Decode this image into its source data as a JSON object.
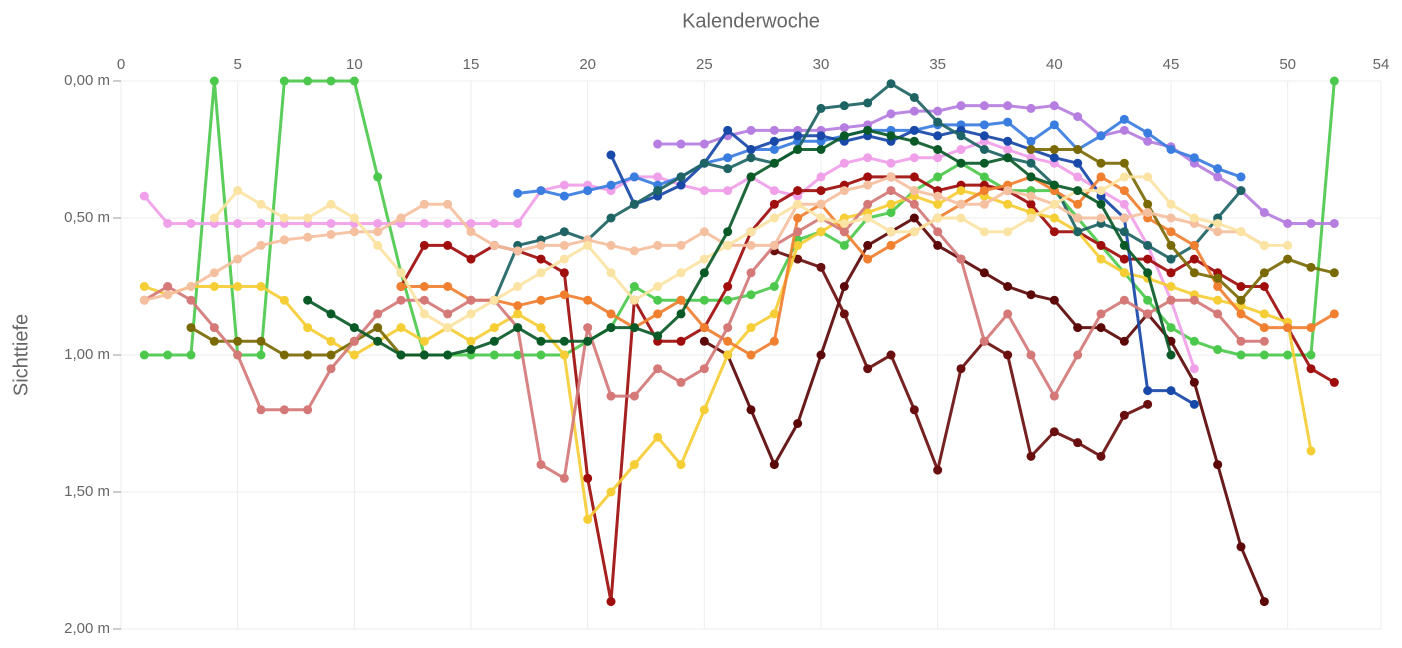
{
  "chart_data": {
    "type": "line",
    "x_label": "Kalenderwoche",
    "y_label": "Sichttiefe",
    "x": [
      1,
      2,
      3,
      4,
      5,
      6,
      7,
      8,
      9,
      10,
      11,
      12,
      13,
      14,
      15,
      16,
      17,
      18,
      19,
      20,
      21,
      22,
      23,
      24,
      25,
      26,
      27,
      28,
      29,
      30,
      31,
      32,
      33,
      34,
      35,
      36,
      37,
      38,
      39,
      40,
      41,
      42,
      43,
      44,
      45,
      46,
      47,
      48,
      49,
      50,
      51,
      52,
      53
    ],
    "xlim": [
      0,
      54
    ],
    "xticks": [
      0,
      5,
      10,
      15,
      20,
      25,
      30,
      35,
      40,
      45,
      50,
      54
    ],
    "ylim": [
      0,
      2
    ],
    "y_inverted": true,
    "x_axis_position": "top",
    "grid": true,
    "yticks": [
      {
        "value": 0,
        "label": "0,00 m"
      },
      {
        "value": 0.5,
        "label": "0,50 m"
      },
      {
        "value": 1,
        "label": "1,00 m"
      },
      {
        "value": 1.5,
        "label": "1,50 m"
      },
      {
        "value": 2,
        "label": "2,00 m"
      }
    ],
    "series": [
      {
        "color": "#4cc94c",
        "values": [
          1,
          1,
          1,
          0,
          1,
          1,
          0,
          0,
          0,
          0,
          0.35,
          0.7,
          1,
          1,
          1,
          1,
          1,
          1,
          1,
          0.95,
          0.9,
          0.75,
          0.8,
          0.8,
          0.8,
          0.8,
          0.78,
          0.75,
          0.58,
          0.55,
          0.6,
          0.5,
          0.48,
          0.4,
          0.35,
          0.3,
          0.35,
          0.4,
          0.4,
          0.4,
          0.5,
          0.6,
          0.7,
          0.8,
          0.9,
          0.95,
          0.98,
          1,
          1,
          1,
          1,
          0,
          null
        ]
      },
      {
        "color": "#f0a0e8",
        "values": [
          0.42,
          0.52,
          0.52,
          0.52,
          0.52,
          0.52,
          0.52,
          0.52,
          0.52,
          0.52,
          0.52,
          0.52,
          0.52,
          0.52,
          0.52,
          0.52,
          0.52,
          0.4,
          0.38,
          0.38,
          0.4,
          0.35,
          0.35,
          0.38,
          0.4,
          0.4,
          0.35,
          0.4,
          0.42,
          0.35,
          0.3,
          0.28,
          0.3,
          0.28,
          0.28,
          0.25,
          0.22,
          0.25,
          0.28,
          0.3,
          0.35,
          0.4,
          0.45,
          0.6,
          0.8,
          1.05,
          null,
          null,
          null,
          null,
          null,
          null,
          null
        ]
      },
      {
        "color": "#b57ee0",
        "values": [
          null,
          null,
          null,
          null,
          null,
          null,
          null,
          null,
          null,
          null,
          null,
          null,
          null,
          null,
          null,
          null,
          null,
          null,
          null,
          null,
          null,
          null,
          0.23,
          0.23,
          0.23,
          0.2,
          0.18,
          0.18,
          0.18,
          0.18,
          0.17,
          0.16,
          0.12,
          0.11,
          0.11,
          0.09,
          0.09,
          0.09,
          0.1,
          0.09,
          0.13,
          0.2,
          0.18,
          0.22,
          0.24,
          0.3,
          0.35,
          0.4,
          0.48,
          0.52,
          0.52,
          0.52,
          null
        ]
      },
      {
        "color": "#5c0808",
        "values": [
          null,
          null,
          null,
          null,
          null,
          null,
          null,
          null,
          null,
          null,
          null,
          null,
          null,
          null,
          null,
          null,
          null,
          null,
          null,
          null,
          null,
          null,
          null,
          null,
          0.95,
          1.0,
          1.2,
          1.4,
          1.25,
          1.0,
          0.75,
          0.6,
          0.55,
          0.5,
          0.6,
          0.65,
          0.7,
          0.75,
          0.78,
          0.8,
          0.9,
          0.9,
          0.95,
          0.85,
          0.95,
          1.1,
          1.4,
          1.7,
          1.9,
          null,
          null,
          null,
          null
        ]
      },
      {
        "color": "#6a0f0f",
        "values": [
          null,
          null,
          null,
          null,
          null,
          null,
          null,
          null,
          null,
          null,
          null,
          null,
          null,
          null,
          null,
          null,
          null,
          null,
          null,
          null,
          null,
          null,
          null,
          null,
          null,
          null,
          null,
          0.62,
          0.65,
          0.68,
          0.85,
          1.05,
          1.0,
          1.2,
          1.42,
          1.05,
          0.95,
          1.0,
          1.37,
          1.28,
          1.32,
          1.37,
          1.22,
          1.18,
          null,
          null,
          null,
          null,
          null,
          null,
          null,
          null,
          null
        ]
      },
      {
        "color": "#a00d0d",
        "values": [
          null,
          null,
          null,
          null,
          null,
          null,
          null,
          null,
          null,
          null,
          null,
          0.75,
          0.6,
          0.6,
          0.65,
          0.6,
          0.62,
          0.65,
          0.7,
          1.45,
          1.9,
          0.8,
          0.95,
          0.95,
          0.9,
          0.75,
          0.55,
          0.45,
          0.4,
          0.4,
          0.38,
          0.35,
          0.35,
          0.35,
          0.4,
          0.38,
          0.38,
          0.4,
          0.45,
          0.55,
          0.55,
          0.6,
          0.65,
          0.65,
          0.7,
          0.65,
          0.7,
          0.75,
          0.75,
          0.9,
          1.05,
          1.1,
          null
        ]
      },
      {
        "color": "#f5cd35",
        "values": [
          0.75,
          0.78,
          0.75,
          0.75,
          0.75,
          0.75,
          0.8,
          0.9,
          0.95,
          1.0,
          0.95,
          0.9,
          0.95,
          0.9,
          0.95,
          0.9,
          0.85,
          0.9,
          1.0,
          1.6,
          1.5,
          1.4,
          1.3,
          1.4,
          1.2,
          1.0,
          0.9,
          0.85,
          0.6,
          0.55,
          0.5,
          0.48,
          0.45,
          0.42,
          0.45,
          0.4,
          0.42,
          0.45,
          0.48,
          0.5,
          0.55,
          0.65,
          0.7,
          0.72,
          0.75,
          0.78,
          0.8,
          0.82,
          0.85,
          0.88,
          1.35,
          null,
          null
        ]
      },
      {
        "color": "#3a7de0",
        "values": [
          null,
          null,
          null,
          null,
          null,
          null,
          null,
          null,
          null,
          null,
          null,
          null,
          null,
          null,
          null,
          null,
          0.41,
          0.4,
          0.42,
          0.4,
          0.38,
          0.35,
          0.38,
          0.35,
          0.3,
          0.28,
          0.25,
          0.25,
          0.22,
          0.22,
          0.2,
          0.18,
          0.18,
          0.18,
          0.16,
          0.16,
          0.16,
          0.15,
          0.22,
          0.16,
          0.25,
          0.2,
          0.14,
          0.19,
          0.25,
          0.28,
          0.32,
          0.35,
          null,
          null,
          null,
          null,
          null
        ]
      },
      {
        "color": "#1848a8",
        "values": [
          null,
          null,
          null,
          null,
          null,
          null,
          null,
          null,
          null,
          null,
          null,
          null,
          null,
          null,
          null,
          null,
          null,
          null,
          null,
          null,
          0.27,
          0.45,
          0.42,
          0.38,
          0.3,
          0.18,
          0.25,
          0.22,
          0.2,
          0.2,
          0.22,
          0.2,
          0.22,
          0.18,
          0.2,
          0.18,
          0.2,
          0.22,
          0.25,
          0.28,
          0.3,
          0.42,
          0.5,
          1.13,
          1.13,
          1.18,
          null,
          null,
          null,
          null,
          null,
          null,
          null
        ]
      },
      {
        "color": "#1f6464",
        "values": [
          null,
          null,
          null,
          null,
          null,
          null,
          null,
          null,
          null,
          null,
          null,
          null,
          null,
          null,
          null,
          0.8,
          0.6,
          0.58,
          0.55,
          0.58,
          0.5,
          0.45,
          0.4,
          0.35,
          0.3,
          0.32,
          0.28,
          0.3,
          0.25,
          0.1,
          0.09,
          0.08,
          0.01,
          0.06,
          0.15,
          0.2,
          0.25,
          0.28,
          0.3,
          0.38,
          0.55,
          0.52,
          0.55,
          0.6,
          0.65,
          0.6,
          0.5,
          0.4,
          null,
          null,
          null,
          null,
          null
        ]
      },
      {
        "color": "#f08030",
        "values": [
          null,
          null,
          null,
          null,
          null,
          null,
          null,
          null,
          null,
          null,
          null,
          0.75,
          0.75,
          0.75,
          0.8,
          0.8,
          0.82,
          0.8,
          0.78,
          0.8,
          0.85,
          0.9,
          0.85,
          0.8,
          0.9,
          0.95,
          1.0,
          0.95,
          0.5,
          0.45,
          0.55,
          0.65,
          0.6,
          0.55,
          0.5,
          0.45,
          0.4,
          0.38,
          0.35,
          0.4,
          0.45,
          0.35,
          0.4,
          0.5,
          0.55,
          0.6,
          0.75,
          0.85,
          0.9,
          0.9,
          0.9,
          0.85,
          null
        ]
      },
      {
        "color": "#7a6a05",
        "values": [
          null,
          null,
          0.9,
          0.95,
          0.95,
          0.95,
          1.0,
          1.0,
          1.0,
          0.95,
          0.9,
          1.0,
          1.0,
          null,
          null,
          null,
          null,
          null,
          null,
          null,
          null,
          null,
          null,
          null,
          null,
          null,
          null,
          null,
          null,
          null,
          null,
          null,
          null,
          null,
          null,
          null,
          null,
          null,
          0.25,
          0.25,
          0.25,
          0.3,
          0.3,
          0.45,
          0.6,
          0.7,
          0.72,
          0.8,
          0.7,
          0.65,
          0.68,
          0.7,
          null
        ]
      },
      {
        "color": "#d47878",
        "values": [
          0.8,
          0.75,
          0.8,
          0.9,
          1.0,
          1.2,
          1.2,
          1.2,
          1.05,
          0.95,
          0.85,
          0.8,
          0.8,
          0.85,
          0.8,
          0.8,
          0.9,
          1.4,
          1.45,
          0.9,
          1.15,
          1.15,
          1.05,
          1.1,
          1.05,
          0.9,
          0.7,
          0.6,
          0.55,
          0.5,
          0.55,
          0.45,
          0.4,
          0.45,
          0.55,
          0.65,
          0.95,
          0.85,
          1.0,
          1.15,
          1.0,
          0.85,
          0.8,
          0.85,
          0.8,
          0.8,
          0.85,
          0.95,
          0.95,
          null,
          null,
          null,
          null
        ]
      },
      {
        "color": "#f5c0a0",
        "values": [
          0.8,
          0.78,
          0.75,
          0.7,
          0.65,
          0.6,
          0.58,
          0.57,
          0.56,
          0.55,
          0.55,
          0.5,
          0.45,
          0.45,
          0.55,
          0.6,
          0.62,
          0.6,
          0.6,
          0.58,
          0.6,
          0.62,
          0.6,
          0.6,
          0.55,
          0.6,
          0.6,
          0.6,
          0.45,
          0.45,
          0.4,
          0.38,
          0.35,
          0.4,
          0.42,
          0.45,
          0.45,
          0.4,
          0.42,
          0.45,
          0.5,
          0.5,
          0.5,
          0.48,
          0.5,
          0.52,
          0.55,
          0.55,
          0.6,
          null,
          null,
          null,
          null
        ]
      },
      {
        "color": "#fbe3a3",
        "values": [
          null,
          null,
          null,
          0.5,
          0.4,
          0.45,
          0.5,
          0.5,
          0.45,
          0.5,
          0.6,
          0.7,
          0.85,
          0.9,
          0.85,
          0.8,
          0.75,
          0.7,
          0.65,
          0.6,
          0.7,
          0.8,
          0.75,
          0.7,
          0.65,
          0.6,
          0.55,
          0.5,
          0.45,
          0.5,
          0.52,
          0.5,
          0.55,
          0.55,
          0.5,
          0.5,
          0.55,
          0.55,
          0.5,
          0.45,
          0.4,
          0.4,
          0.35,
          0.35,
          0.45,
          0.5,
          0.52,
          0.55,
          0.6,
          0.6,
          null,
          null,
          null
        ]
      },
      {
        "color": "#0a5a28",
        "values": [
          null,
          null,
          null,
          null,
          null,
          null,
          null,
          0.8,
          0.85,
          0.9,
          0.95,
          1.0,
          1.0,
          1.0,
          0.98,
          0.95,
          0.9,
          0.95,
          0.95,
          0.95,
          0.9,
          0.9,
          0.93,
          0.85,
          0.7,
          0.55,
          0.35,
          0.3,
          0.25,
          0.25,
          0.2,
          0.18,
          0.2,
          0.22,
          0.25,
          0.3,
          0.3,
          0.28,
          0.35,
          0.38,
          0.4,
          0.45,
          0.6,
          0.7,
          1.0,
          null,
          null,
          null,
          null,
          null,
          null,
          null,
          null
        ]
      }
    ]
  }
}
